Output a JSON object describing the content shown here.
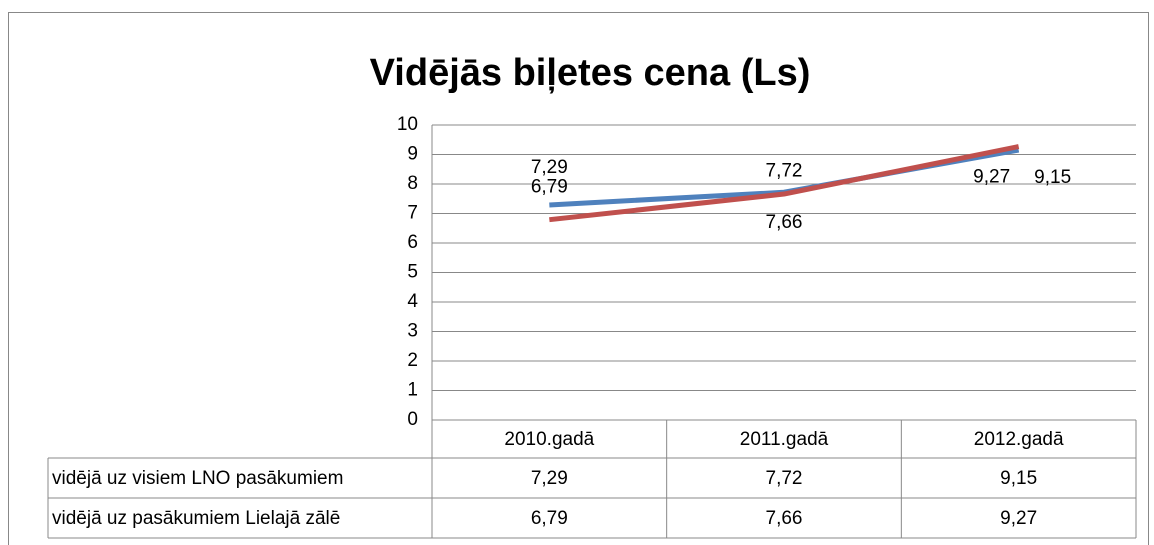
{
  "chart_data": {
    "type": "line",
    "title": "Vidējās biļetes cena (Ls)",
    "categories": [
      "2010.gadā",
      "2011.gadā",
      "2012.gadā"
    ],
    "series": [
      {
        "name": "vidējā uz visiem LNO pasākumiem",
        "color": "#4f81bd",
        "values": [
          7.29,
          7.72,
          9.15
        ],
        "value_labels": [
          "7,29",
          "7,72",
          "9,15"
        ]
      },
      {
        "name": "vidējā uz pasākumiem Lielajā zālē",
        "color": "#c0504d",
        "values": [
          6.79,
          7.66,
          9.27
        ],
        "value_labels": [
          "6,79",
          "7,66",
          "9,27"
        ]
      }
    ],
    "ylim": [
      0,
      10
    ],
    "yticks": [
      0,
      1,
      2,
      3,
      4,
      5,
      6,
      7,
      8,
      9,
      10
    ],
    "grid": true
  }
}
